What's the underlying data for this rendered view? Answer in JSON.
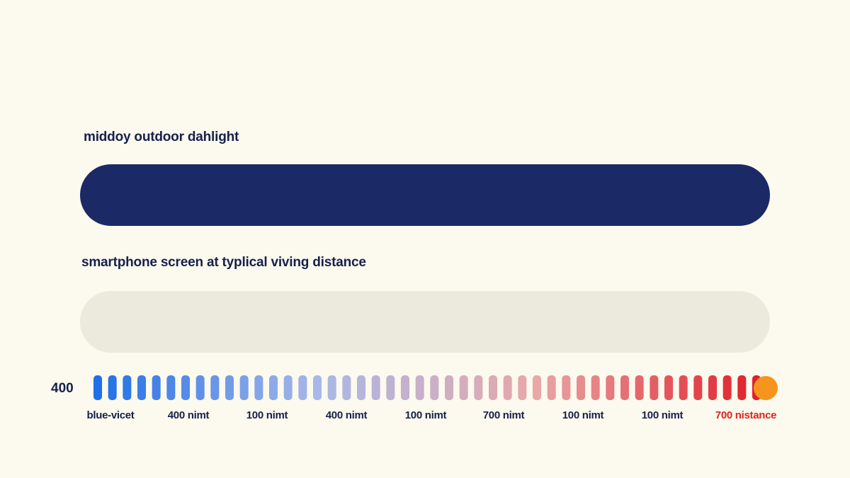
{
  "colors": {
    "background": "#fcf9ee",
    "text": "#16214a",
    "accent_label": "#e0241c"
  },
  "chart_data": {
    "type": "bar",
    "orientation": "horizontal",
    "bars": [
      {
        "label": "middoy outdoor dahlight",
        "color": "#1b2a66"
      },
      {
        "label": "smartphone screen at typlical viving distance",
        "color": "#ebeadc"
      }
    ],
    "scale": {
      "start_label": "400",
      "segment_count": 46,
      "gradient": [
        "#1f6fe8",
        "#a9b8e8",
        "#e9a7a8",
        "#e0202a"
      ],
      "end_marker_color": "#f7941e",
      "tick_labels": [
        {
          "text": "blue-vicet",
          "color": "#16214a"
        },
        {
          "text": "400 nimt",
          "color": "#16214a"
        },
        {
          "text": "100 nimt",
          "color": "#16214a"
        },
        {
          "text": "400 nimt",
          "color": "#16214a"
        },
        {
          "text": "100 nimt",
          "color": "#16214a"
        },
        {
          "text": "700 nimt",
          "color": "#16214a"
        },
        {
          "text": "100 nimt",
          "color": "#16214a"
        },
        {
          "text": "100 nimt",
          "color": "#16214a"
        },
        {
          "text": "700 nistance",
          "color": "#e0241c"
        }
      ]
    }
  }
}
